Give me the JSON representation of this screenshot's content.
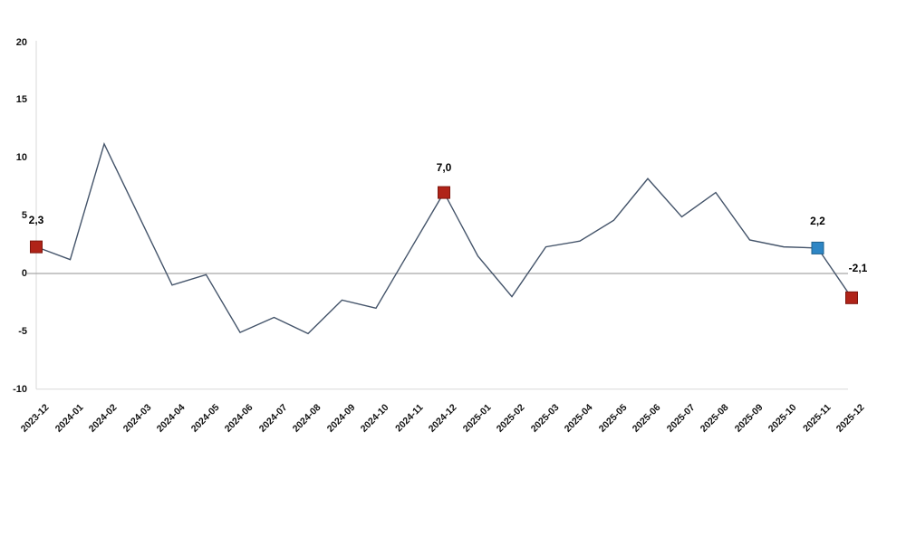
{
  "chart_data": {
    "type": "line",
    "title": "",
    "xlabel": "",
    "ylabel": "",
    "ylim": [
      -10,
      20
    ],
    "y_ticks": [
      20,
      15,
      10,
      5,
      0,
      -5,
      -10
    ],
    "grid": "zero-line-only",
    "legend": "none",
    "categories": [
      "2023-12",
      "2024-01",
      "2024-02",
      "2024-03",
      "2024-04",
      "2024-05",
      "2024-06",
      "2024-07",
      "2024-08",
      "2024-09",
      "2024-10",
      "2024-11",
      "2024-12",
      "2025-01",
      "2025-02",
      "2025-03",
      "2025-04",
      "2025-05",
      "2025-06",
      "2025-07",
      "2025-08",
      "2025-09",
      "2025-10",
      "2025-11",
      "2025-12"
    ],
    "values": [
      2.3,
      1.2,
      11.2,
      5.1,
      -1.0,
      -0.1,
      -5.1,
      -3.8,
      -5.2,
      -2.3,
      -3.0,
      2.0,
      7.0,
      1.5,
      -2.0,
      2.3,
      2.8,
      4.6,
      8.2,
      4.9,
      7.0,
      2.9,
      2.3,
      2.2,
      -2.1
    ],
    "labeled_points": [
      {
        "index": 0,
        "category": "2023-12",
        "value": 2.3,
        "label": "2,3",
        "marker_color": "#b02318",
        "marker_border": "#7d150d"
      },
      {
        "index": 12,
        "category": "2024-12",
        "value": 7.0,
        "label": "7,0",
        "marker_color": "#b02318",
        "marker_border": "#7d150d"
      },
      {
        "index": 23,
        "category": "2025-11",
        "value": 2.2,
        "label": "2,2",
        "marker_color": "#2e86c5",
        "marker_border": "#1f618d"
      },
      {
        "index": 24,
        "category": "2025-12",
        "value": -2.1,
        "label": "-2,1",
        "marker_color": "#b02318",
        "marker_border": "#7d150d"
      }
    ],
    "colors": {
      "series_line": "#44546a",
      "zero_line": "#a6a6a6",
      "axis_line": "#d9d9d9",
      "tick_text": "#111111",
      "label_text": "#000000",
      "background": "#ffffff"
    }
  }
}
